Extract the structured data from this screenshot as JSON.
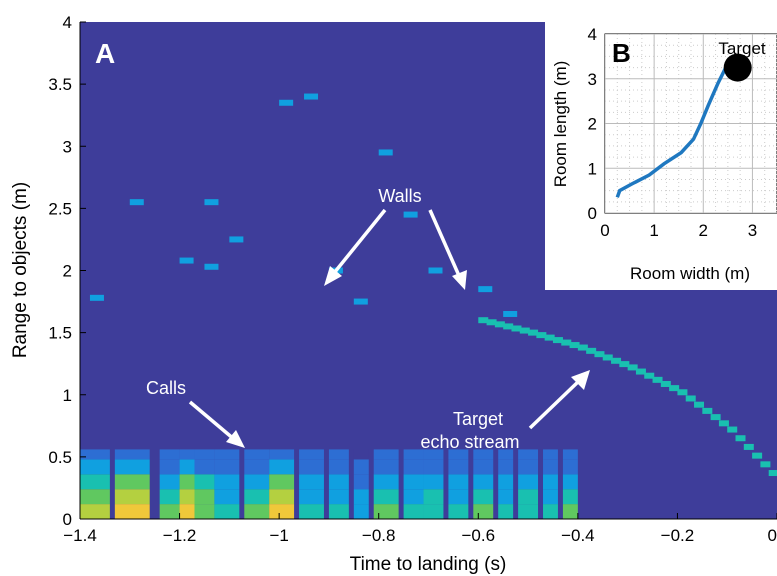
{
  "chart_data": [
    {
      "type": "heatmap",
      "panel_label": "A",
      "xlabel": "Time to landing (s)",
      "ylabel": "Range to objects (m)",
      "xlim": [
        -1.4,
        0
      ],
      "ylim": [
        0,
        4
      ],
      "x_ticks": [
        "−1.4",
        "−1.2",
        "−1",
        "−0.8",
        "−0.6",
        "−0.4",
        "−0.2",
        "0"
      ],
      "y_ticks": [
        "0",
        "0.5",
        "1",
        "1.5",
        "2",
        "2.5",
        "3",
        "3.5",
        "4"
      ],
      "x_tick_values": [
        -1.4,
        -1.2,
        -1.0,
        -0.8,
        -0.6,
        -0.4,
        -0.2,
        0
      ],
      "y_tick_values": [
        0,
        0.5,
        1,
        1.5,
        2,
        2.5,
        3,
        3.5,
        4
      ],
      "colormap": [
        "#3e3d9a",
        "#2d6ed3",
        "#10a0e0",
        "#19c0b0",
        "#60c860",
        "#b4d040",
        "#f0c83a",
        "#f9f010"
      ],
      "calls": [
        {
          "t_start": -1.4,
          "t_end": -1.34,
          "peak": 0.65
        },
        {
          "t_start": -1.33,
          "t_end": -1.26,
          "peak": 0.9
        },
        {
          "t_start": -1.24,
          "t_end": -1.2,
          "peak": 0.55
        },
        {
          "t_start": -1.2,
          "t_end": -1.17,
          "peak": 0.85
        },
        {
          "t_start": -1.17,
          "t_end": -1.13,
          "peak": 0.6
        },
        {
          "t_start": -1.13,
          "t_end": -1.08,
          "peak": 0.4
        },
        {
          "t_start": -1.07,
          "t_end": -1.02,
          "peak": 0.55
        },
        {
          "t_start": -1.02,
          "t_end": -0.97,
          "peak": 0.85
        },
        {
          "t_start": -0.96,
          "t_end": -0.91,
          "peak": 0.4
        },
        {
          "t_start": -0.9,
          "t_end": -0.86,
          "peak": 0.38
        },
        {
          "t_start": -0.85,
          "t_end": -0.82,
          "peak": 0.35
        },
        {
          "t_start": -0.81,
          "t_end": -0.76,
          "peak": 0.55
        },
        {
          "t_start": -0.75,
          "t_end": -0.71,
          "peak": 0.4
        },
        {
          "t_start": -0.71,
          "t_end": -0.67,
          "peak": 0.45
        },
        {
          "t_start": -0.66,
          "t_end": -0.62,
          "peak": 0.42
        },
        {
          "t_start": -0.61,
          "t_end": -0.57,
          "peak": 0.5
        },
        {
          "t_start": -0.56,
          "t_end": -0.53,
          "peak": 0.4
        },
        {
          "t_start": -0.52,
          "t_end": -0.48,
          "peak": 0.45
        },
        {
          "t_start": -0.47,
          "t_end": -0.44,
          "peak": 0.42
        },
        {
          "t_start": -0.43,
          "t_end": -0.4,
          "peak": 0.5
        }
      ],
      "echo_stream": [
        {
          "t": -0.6,
          "range": 1.6
        },
        {
          "t": -0.5,
          "range": 1.5
        },
        {
          "t": -0.4,
          "range": 1.38
        },
        {
          "t": -0.3,
          "range": 1.22
        },
        {
          "t": -0.2,
          "range": 1.02
        },
        {
          "t": -0.1,
          "range": 0.72
        },
        {
          "t": 0.0,
          "range": 0.3
        }
      ],
      "annotations": [
        {
          "text": "Walls",
          "at": [
            -0.65,
            2.55
          ],
          "arrows_to": [
            [
              -0.88,
              1.8
            ],
            [
              -0.6,
              1.8
            ]
          ]
        },
        {
          "text": "Calls",
          "at": [
            -1.2,
            1.0
          ],
          "arrows_to": [
            [
              -1.03,
              0.62
            ]
          ]
        },
        {
          "text": [
            "Target",
            "echo stream"
          ],
          "at": [
            -0.54,
            0.78
          ],
          "arrows_to": [
            [
              -0.38,
              1.22
            ]
          ]
        }
      ]
    },
    {
      "type": "line",
      "panel_label": "B",
      "xlabel": "Room width (m)",
      "ylabel": "Room length (m)",
      "xlim": [
        0,
        3.5
      ],
      "ylim": [
        0,
        4
      ],
      "x_ticks": [
        "0",
        "1",
        "2",
        "3"
      ],
      "y_ticks": [
        "0",
        "1",
        "2",
        "3",
        "4"
      ],
      "grid": true,
      "series": [
        {
          "values": [
            [
              0.25,
              0.35
            ],
            [
              0.3,
              0.5
            ],
            [
              0.55,
              0.65
            ],
            [
              0.9,
              0.85
            ],
            [
              1.2,
              1.1
            ],
            [
              1.55,
              1.35
            ],
            [
              1.8,
              1.65
            ],
            [
              1.95,
              2.0
            ],
            [
              2.1,
              2.4
            ],
            [
              2.3,
              2.9
            ],
            [
              2.48,
              3.3
            ]
          ]
        }
      ],
      "target": {
        "label": "Target",
        "x": 2.7,
        "y": 3.25
      }
    }
  ],
  "colors": {
    "background": "#3e3d9a",
    "trajectory": "#1f78c0",
    "target_marker": "#000000",
    "annotation": "#ffffff"
  }
}
